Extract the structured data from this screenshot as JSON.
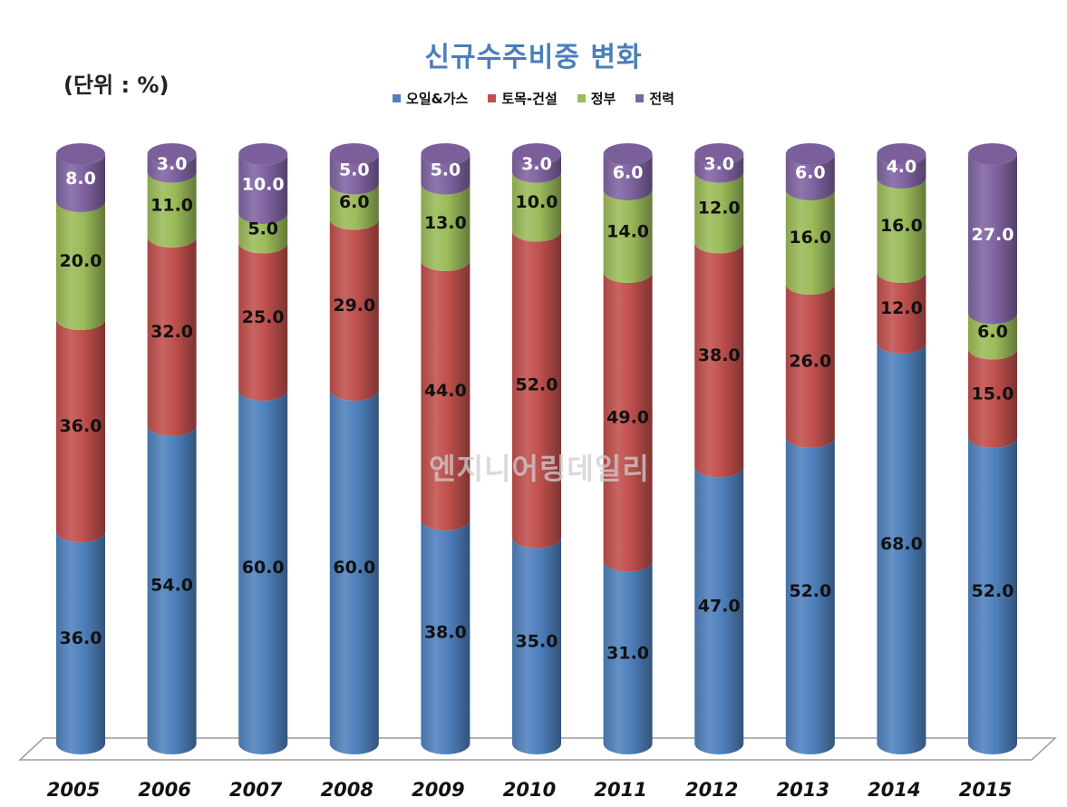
{
  "chart_data": {
    "type": "bar",
    "stacked": true,
    "title": "신규수주비중 변화",
    "unit_label": "(단위 : %)",
    "categories": [
      "2005",
      "2006",
      "2007",
      "2008",
      "2009",
      "2010",
      "2011",
      "2012",
      "2013",
      "2014",
      "2015"
    ],
    "series": [
      {
        "name": "오일&가스",
        "color": "#4f81bd",
        "values": [
          36,
          54,
          60,
          60,
          38,
          35,
          31,
          47,
          52,
          68,
          52
        ],
        "labels": [
          "36.0",
          "54.0",
          "60.0",
          "60.0",
          "38.0",
          "35.0",
          "31.0",
          "47.0",
          "52.0",
          "68.0",
          "52.0"
        ]
      },
      {
        "name": "토목-건설",
        "color": "#c0504d",
        "values": [
          36,
          32,
          25,
          29,
          44,
          52,
          49,
          38,
          26,
          12,
          15
        ],
        "labels": [
          "36.0",
          "32.0",
          "25.0",
          "29.0",
          "44.0",
          "52.0",
          "49.0",
          "38.0",
          "26.0",
          "12.0",
          "15.0"
        ]
      },
      {
        "name": "정부",
        "color": "#9bbb59",
        "values": [
          20,
          11,
          5,
          6,
          13,
          10,
          14,
          12,
          16,
          16,
          6
        ],
        "labels": [
          "20.0",
          "11.0",
          "5.0",
          "6.0",
          "13.0",
          "10.0",
          "14.0",
          "12.0",
          "16.0",
          "16.0",
          "6.0"
        ]
      },
      {
        "name": "전력",
        "color": "#8064a2",
        "values": [
          8,
          3,
          10,
          5,
          5,
          3,
          6,
          3,
          6,
          4,
          27
        ],
        "labels": [
          "8.0",
          "3.0",
          "10.0",
          "5.0",
          "5.0",
          "3.0",
          "6.0",
          "3.0",
          "6.0",
          "4.0",
          "27.0"
        ]
      }
    ],
    "legend_position": "top-center",
    "grid": false
  },
  "watermark": "엔지니어링데일리"
}
